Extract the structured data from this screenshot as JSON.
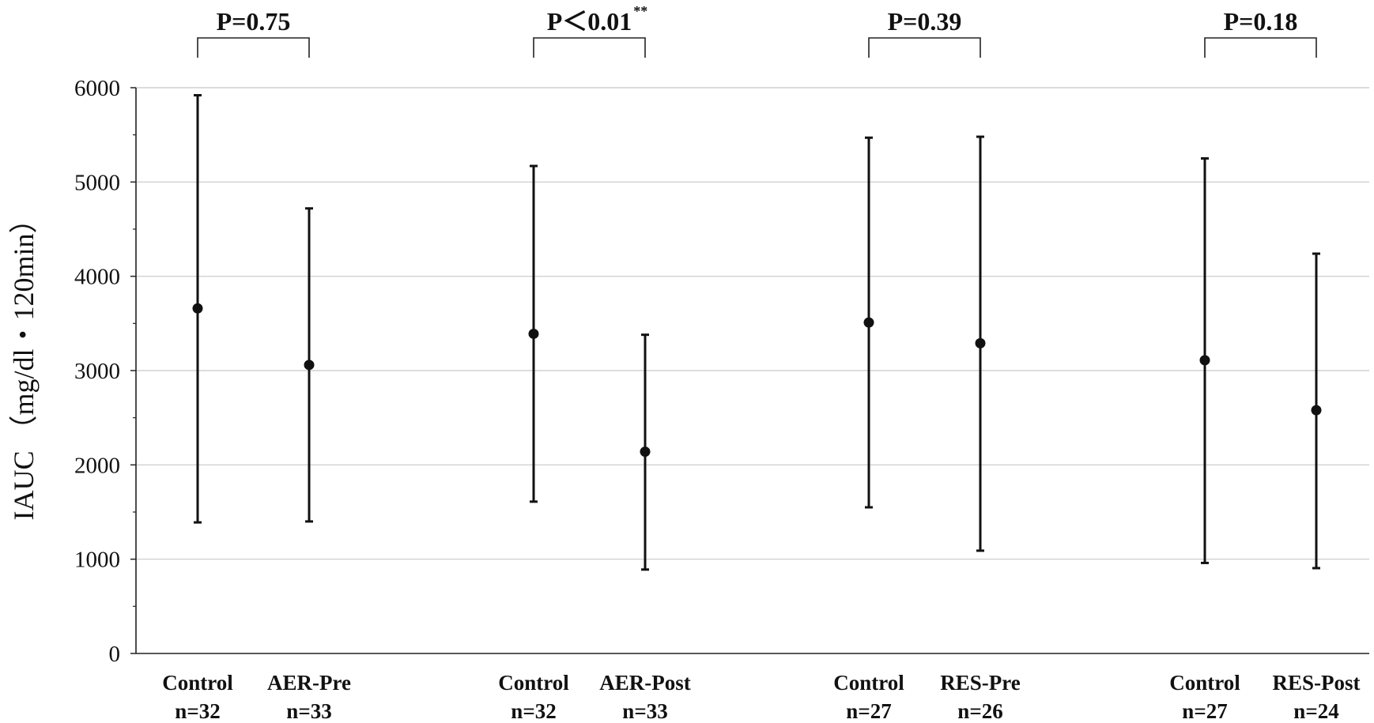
{
  "chart_data": {
    "type": "scatter",
    "subtype": "mean-with-range-errorbars",
    "ylabel": "IAUC （mg/dl・120min）",
    "ylim": [
      0,
      6000
    ],
    "yticks": [
      "0",
      "1000",
      "2000",
      "3000",
      "4000",
      "5000",
      "6000"
    ],
    "grid": true,
    "categories": [
      {
        "name": "Control",
        "n": "n=32"
      },
      {
        "name": "AER-Pre",
        "n": "n=33"
      },
      {
        "name": "Control",
        "n": "n=32"
      },
      {
        "name": "AER-Post",
        "n": "n=33"
      },
      {
        "name": "Control",
        "n": "n=27"
      },
      {
        "name": "RES-Pre",
        "n": "n=26"
      },
      {
        "name": "Control",
        "n": "n=27"
      },
      {
        "name": "RES-Post",
        "n": "n=24"
      }
    ],
    "series": [
      {
        "values": [
          3660,
          3060,
          3390,
          2140,
          3510,
          3290,
          3110,
          2580
        ],
        "upper": [
          5920,
          4720,
          5170,
          3380,
          5470,
          5480,
          5250,
          4240
        ],
        "lower": [
          1390,
          1400,
          1610,
          890,
          1550,
          1090,
          960,
          905
        ]
      }
    ],
    "comparisons": [
      {
        "pair": [
          0,
          1
        ],
        "label": "P=0.75",
        "suffix": ""
      },
      {
        "pair": [
          2,
          3
        ],
        "label": "P＜0.01",
        "suffix": "**"
      },
      {
        "pair": [
          4,
          5
        ],
        "label": "P=0.39",
        "suffix": ""
      },
      {
        "pair": [
          6,
          7
        ],
        "label": "P=0.18",
        "suffix": ""
      }
    ]
  }
}
